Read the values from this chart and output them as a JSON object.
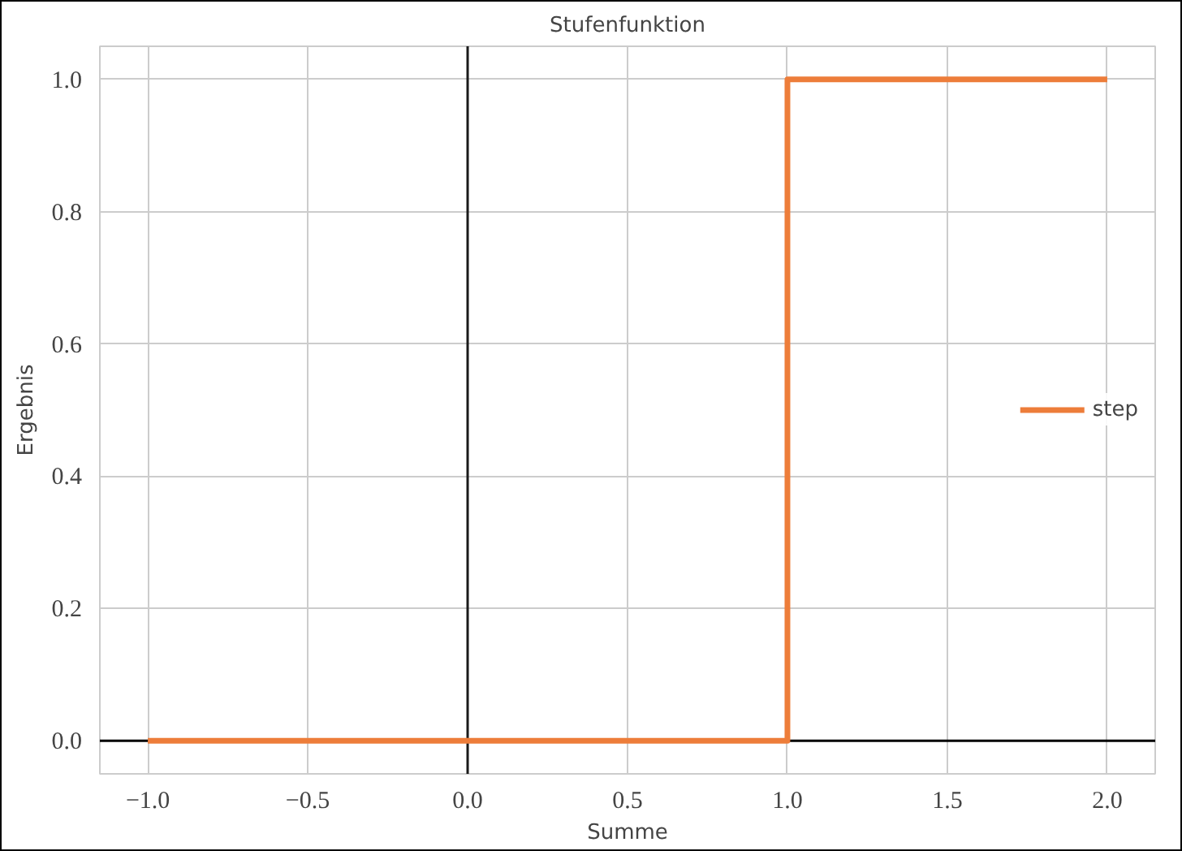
{
  "chart_data": {
    "type": "step",
    "title": "Stufenfunktion",
    "xlabel": "Summe",
    "ylabel": "Ergebnis",
    "x": [
      -1.0,
      1.0,
      2.0
    ],
    "series": [
      {
        "name": "step",
        "color": "#ed7d3a",
        "values": [
          0.0,
          1.0,
          1.0
        ]
      }
    ],
    "xlim": [
      -1.15,
      2.15
    ],
    "ylim": [
      -0.05,
      1.05
    ],
    "xticks": [
      {
        "value": -1.0,
        "label": "−1.0"
      },
      {
        "value": -0.5,
        "label": "−0.5"
      },
      {
        "value": 0.0,
        "label": "0.0"
      },
      {
        "value": 0.5,
        "label": "0.5"
      },
      {
        "value": 1.0,
        "label": "1.0"
      },
      {
        "value": 1.5,
        "label": "1.5"
      },
      {
        "value": 2.0,
        "label": "2.0"
      }
    ],
    "yticks": [
      {
        "value": 0.0,
        "label": "0.0"
      },
      {
        "value": 0.2,
        "label": "0.2"
      },
      {
        "value": 0.4,
        "label": "0.4"
      },
      {
        "value": 0.6,
        "label": "0.6"
      },
      {
        "value": 0.8,
        "label": "0.8"
      },
      {
        "value": 1.0,
        "label": "1.0"
      }
    ],
    "ref_lines": [
      {
        "axis": "x",
        "value": 0.0,
        "color": "#1a1a1a"
      },
      {
        "axis": "y",
        "value": 0.0,
        "color": "#000000"
      }
    ],
    "grid": true,
    "legend": "right"
  }
}
